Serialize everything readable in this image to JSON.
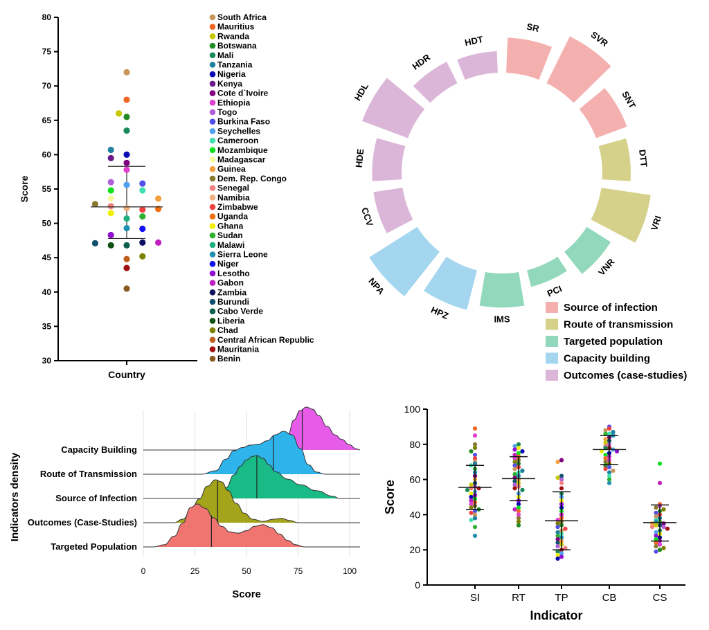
{
  "chart_data": [
    {
      "type": "scatter",
      "ylabel": "Score",
      "xlabel": "Country",
      "ylim": [
        30,
        80
      ],
      "yticks": [
        30,
        35,
        40,
        45,
        50,
        55,
        60,
        65,
        70,
        75,
        80
      ],
      "summary": {
        "mean": 52.4,
        "sd_upper": 58.3,
        "sd_lower": 47.8
      },
      "legend": [
        {
          "name": "South Africa",
          "color": "#c8965a"
        },
        {
          "name": "Mauritius",
          "color": "#f26522"
        },
        {
          "name": "Rwanda",
          "color": "#c8c800"
        },
        {
          "name": "Botswana",
          "color": "#228b22"
        },
        {
          "name": "Mali",
          "color": "#1a8a5a"
        },
        {
          "name": "Tanzania",
          "color": "#2080a0"
        },
        {
          "name": "Nigeria",
          "color": "#0a0ab4"
        },
        {
          "name": "Kenya",
          "color": "#6a1a8a"
        },
        {
          "name": "Cote d`Ivoire",
          "color": "#800080"
        },
        {
          "name": "Ethiopia",
          "color": "#e040d0"
        },
        {
          "name": "Togo",
          "color": "#b060d8"
        },
        {
          "name": "Burkina Faso",
          "color": "#5050e8"
        },
        {
          "name": "Seychelles",
          "color": "#50a0f0"
        },
        {
          "name": "Cameroon",
          "color": "#40e0b0"
        },
        {
          "name": "Mozambique",
          "color": "#10e020"
        },
        {
          "name": "Madagascar",
          "color": "#f8f8a0"
        },
        {
          "name": "Guinea",
          "color": "#f0a040"
        },
        {
          "name": "Dem. Rep. Congo",
          "color": "#8a7a30"
        },
        {
          "name": "Senegal",
          "color": "#f08080"
        },
        {
          "name": "Namibia",
          "color": "#f0b080"
        },
        {
          "name": "Zimbabwe",
          "color": "#f04040"
        },
        {
          "name": "Uganda",
          "color": "#f07010"
        },
        {
          "name": "Ghana",
          "color": "#f0f000"
        },
        {
          "name": "Sudan",
          "color": "#30b030"
        },
        {
          "name": "Malawi",
          "color": "#20b080"
        },
        {
          "name": "Sierra Leone",
          "color": "#2090b0"
        },
        {
          "name": "Niger",
          "color": "#1010f0"
        },
        {
          "name": "Lesotho",
          "color": "#9010d0"
        },
        {
          "name": "Gabon",
          "color": "#c020c0"
        },
        {
          "name": "Zambia",
          "color": "#101060"
        },
        {
          "name": "Burundi",
          "color": "#105070"
        },
        {
          "name": "Cabo Verde",
          "color": "#106050"
        },
        {
          "name": "Liberia",
          "color": "#105010"
        },
        {
          "name": "Chad",
          "color": "#808000"
        },
        {
          "name": "Central African Republic",
          "color": "#c06020"
        },
        {
          "name": "Mauritania",
          "color": "#a01010"
        },
        {
          "name": "Benin",
          "color": "#8a5a20"
        }
      ],
      "points": [
        {
          "x": 0.0,
          "y": 72,
          "c": "#c8965a"
        },
        {
          "x": 0.0,
          "y": 68,
          "c": "#f26522"
        },
        {
          "x": -0.6,
          "y": 66,
          "c": "#c8c800"
        },
        {
          "x": 0.0,
          "y": 65.5,
          "c": "#228b22"
        },
        {
          "x": 0.0,
          "y": 63.5,
          "c": "#1a8a5a"
        },
        {
          "x": -1.2,
          "y": 60.7,
          "c": "#2080a0"
        },
        {
          "x": 0.0,
          "y": 60,
          "c": "#0a0ab4"
        },
        {
          "x": -1.2,
          "y": 59.5,
          "c": "#6a1a8a"
        },
        {
          "x": 0.0,
          "y": 58.8,
          "c": "#800080"
        },
        {
          "x": 0.0,
          "y": 57.8,
          "c": "#e040d0"
        },
        {
          "x": -1.2,
          "y": 56,
          "c": "#b060d8"
        },
        {
          "x": 1.2,
          "y": 55.8,
          "c": "#5050e8"
        },
        {
          "x": 0.0,
          "y": 55.6,
          "c": "#50a0f0"
        },
        {
          "x": 1.2,
          "y": 54.8,
          "c": "#40e0b0"
        },
        {
          "x": -1.2,
          "y": 54.8,
          "c": "#10e020"
        },
        {
          "x": -1.2,
          "y": 53.6,
          "c": "#f8f8a0"
        },
        {
          "x": 2.4,
          "y": 53.6,
          "c": "#f0a040"
        },
        {
          "x": -2.4,
          "y": 52.8,
          "c": "#8a7a30"
        },
        {
          "x": -1.2,
          "y": 52.5,
          "c": "#f08080"
        },
        {
          "x": 0.0,
          "y": 52.2,
          "c": "#f0b080"
        },
        {
          "x": 1.2,
          "y": 52.0,
          "c": "#f04040"
        },
        {
          "x": 2.4,
          "y": 52.1,
          "c": "#f07010"
        },
        {
          "x": -1.2,
          "y": 51.5,
          "c": "#f0f000"
        },
        {
          "x": 1.2,
          "y": 51.0,
          "c": "#30b030"
        },
        {
          "x": 0.0,
          "y": 50.7,
          "c": "#20b080"
        },
        {
          "x": 0.0,
          "y": 49.3,
          "c": "#2090b0"
        },
        {
          "x": 1.2,
          "y": 49.2,
          "c": "#1010f0"
        },
        {
          "x": -1.2,
          "y": 48.3,
          "c": "#9010d0"
        },
        {
          "x": 2.4,
          "y": 47.2,
          "c": "#c020c0"
        },
        {
          "x": 1.2,
          "y": 47.2,
          "c": "#101060"
        },
        {
          "x": -2.4,
          "y": 47.1,
          "c": "#105070"
        },
        {
          "x": 0.0,
          "y": 46.8,
          "c": "#106050"
        },
        {
          "x": -1.2,
          "y": 46.8,
          "c": "#105010"
        },
        {
          "x": 1.2,
          "y": 45.2,
          "c": "#808000"
        },
        {
          "x": 0.0,
          "y": 44.8,
          "c": "#c06020"
        },
        {
          "x": 0.0,
          "y": 43.5,
          "c": "#a01010"
        },
        {
          "x": 0.0,
          "y": 40.5,
          "c": "#8a5a20"
        }
      ]
    },
    {
      "type": "bar",
      "subtype": "circular",
      "categories": [
        "SR",
        "SVR",
        "SNT",
        "DTT",
        "VRI",
        "VNR",
        "PCI",
        "IMS",
        "HPZ",
        "NPA",
        "CCV",
        "HDE",
        "HDL",
        "HDR",
        "HDT"
      ],
      "values": [
        62,
        92,
        58,
        50,
        88,
        50,
        30,
        60,
        72,
        100,
        52,
        52,
        86,
        42,
        38
      ],
      "groups": [
        "Source of infection",
        "Source of infection",
        "Source of infection",
        "Route of transmission",
        "Route of transmission",
        "Targeted population",
        "Targeted population",
        "Targeted population",
        "Capacity building",
        "Capacity building",
        "Outcomes (case-studies)",
        "Outcomes (case-studies)",
        "Outcomes (case-studies)",
        "Outcomes (case-studies)",
        "Outcomes (case-studies)"
      ],
      "legend": [
        {
          "name": "Source of infection",
          "color": "#f4b0ae"
        },
        {
          "name": "Route of transmission",
          "color": "#d5d08a"
        },
        {
          "name": "Targeted population",
          "color": "#92d8bd"
        },
        {
          "name": "Capacity building",
          "color": "#a4d6f0"
        },
        {
          "name": "Outcomes (case-studies)",
          "color": "#dcb6d8"
        }
      ]
    },
    {
      "type": "area",
      "subtype": "ridgeline",
      "xlabel": "Score",
      "ylabel": "Indicators density",
      "xlim": [
        0,
        105
      ],
      "xticks": [
        0,
        25,
        50,
        75,
        100
      ],
      "series": [
        {
          "name": "Capacity Building",
          "color": "#e65ce9",
          "median": 77,
          "density": [
            [
              62,
              0
            ],
            [
              67,
              0.1
            ],
            [
              70,
              0.35
            ],
            [
              73,
              0.7
            ],
            [
              76,
              0.92
            ],
            [
              79,
              1.0
            ],
            [
              82,
              0.95
            ],
            [
              85,
              0.8
            ],
            [
              89,
              0.55
            ],
            [
              93,
              0.35
            ],
            [
              96,
              0.25
            ],
            [
              100,
              0.12
            ],
            [
              103,
              0.03
            ],
            [
              105,
              0
            ]
          ]
        },
        {
          "name": "Route of Transmission",
          "color": "#2eb4ea",
          "median": 63,
          "density": [
            [
              28,
              0
            ],
            [
              35,
              0.08
            ],
            [
              40,
              0.35
            ],
            [
              44,
              0.55
            ],
            [
              48,
              0.62
            ],
            [
              52,
              0.68
            ],
            [
              56,
              0.7
            ],
            [
              60,
              0.78
            ],
            [
              64,
              0.92
            ],
            [
              68,
              1.0
            ],
            [
              72,
              0.92
            ],
            [
              76,
              0.6
            ],
            [
              80,
              0.22
            ],
            [
              84,
              0.05
            ],
            [
              88,
              0
            ]
          ]
        },
        {
          "name": "Source of Infection",
          "color": "#19ba85",
          "median": 55,
          "density": [
            [
              33,
              0
            ],
            [
              37,
              0.05
            ],
            [
              40,
              0.25
            ],
            [
              44,
              0.55
            ],
            [
              47,
              0.75
            ],
            [
              50,
              0.9
            ],
            [
              53,
              0.98
            ],
            [
              55,
              1.0
            ],
            [
              58,
              0.93
            ],
            [
              61,
              0.78
            ],
            [
              64,
              0.62
            ],
            [
              70,
              0.45
            ],
            [
              76,
              0.32
            ],
            [
              84,
              0.18
            ],
            [
              92,
              0.05
            ],
            [
              95,
              0
            ]
          ]
        },
        {
          "name": "Outcomes (Case-Studies)",
          "color": "#a4a41a",
          "median": 36,
          "density": [
            [
              15,
              0
            ],
            [
              19,
              0.08
            ],
            [
              23,
              0.25
            ],
            [
              27,
              0.55
            ],
            [
              31,
              0.85
            ],
            [
              35,
              1.0
            ],
            [
              38,
              0.95
            ],
            [
              41,
              0.75
            ],
            [
              45,
              0.45
            ],
            [
              49,
              0.22
            ],
            [
              53,
              0.08
            ],
            [
              58,
              0.03
            ],
            [
              63,
              0.08
            ],
            [
              67,
              0.1
            ],
            [
              71,
              0.05
            ],
            [
              75,
              0
            ]
          ]
        },
        {
          "name": "Targeted Population",
          "color": "#f07470",
          "median": 33,
          "density": [
            [
              5,
              0
            ],
            [
              10,
              0.05
            ],
            [
              15,
              0.25
            ],
            [
              19,
              0.55
            ],
            [
              23,
              0.92
            ],
            [
              26,
              1.0
            ],
            [
              30,
              0.9
            ],
            [
              34,
              0.68
            ],
            [
              38,
              0.48
            ],
            [
              42,
              0.35
            ],
            [
              46,
              0.32
            ],
            [
              50,
              0.38
            ],
            [
              54,
              0.48
            ],
            [
              58,
              0.52
            ],
            [
              62,
              0.45
            ],
            [
              66,
              0.3
            ],
            [
              70,
              0.15
            ],
            [
              74,
              0.05
            ],
            [
              78,
              0
            ]
          ]
        }
      ]
    },
    {
      "type": "scatter",
      "xlabel": "Indicator",
      "ylabel": "Score",
      "ylim": [
        0,
        100
      ],
      "yticks": [
        0,
        20,
        40,
        60,
        80,
        100
      ],
      "categories": [
        "SI",
        "RT",
        "TP",
        "CB",
        "CS"
      ],
      "summary": [
        {
          "mean": 55.5,
          "upper": 68,
          "lower": 43
        },
        {
          "mean": 60.5,
          "upper": 73,
          "lower": 48
        },
        {
          "mean": 36.5,
          "upper": 53,
          "lower": 20
        },
        {
          "mean": 77,
          "upper": 85,
          "lower": 68.5
        },
        {
          "mean": 35.5,
          "upper": 45.5,
          "lower": 25
        }
      ],
      "values": [
        [
          89,
          85,
          80,
          78,
          76,
          74,
          72,
          70,
          69,
          68,
          66,
          64,
          62,
          60,
          58,
          57,
          56,
          55,
          55,
          54,
          53,
          52,
          51,
          50,
          49,
          48,
          47,
          46,
          45,
          44,
          43,
          42,
          41,
          40,
          38,
          37,
          33,
          28
        ],
        [
          80,
          79,
          78,
          77,
          76,
          75,
          74,
          73,
          72,
          71,
          70,
          69,
          68,
          67,
          66,
          65,
          64,
          63,
          62,
          61,
          60,
          59,
          58,
          57,
          56,
          55,
          54,
          52,
          50,
          48,
          46,
          44,
          43,
          42,
          40,
          38,
          36,
          34
        ],
        [
          71,
          70,
          62,
          61,
          60,
          58,
          55,
          52,
          50,
          48,
          46,
          44,
          42,
          40,
          38,
          37,
          36,
          35,
          34,
          33,
          32,
          31,
          30,
          29,
          28,
          27,
          26,
          25,
          24,
          23,
          22,
          21,
          20,
          19,
          18,
          17,
          16,
          15
        ],
        [
          90,
          89,
          88,
          87,
          86,
          86,
          85,
          84,
          83,
          82,
          81,
          80,
          79,
          78,
          78,
          77,
          76,
          76,
          75,
          74,
          73,
          72,
          71,
          70,
          69,
          68,
          67,
          66,
          65,
          64,
          62,
          60,
          58
        ],
        [
          69,
          58,
          46,
          45,
          44,
          43,
          42,
          41,
          40,
          39,
          38,
          37,
          36,
          36,
          35,
          35,
          34,
          34,
          33,
          33,
          32,
          31,
          30,
          29,
          28,
          27,
          26,
          25,
          24,
          23,
          22,
          21,
          20,
          19
        ]
      ]
    }
  ]
}
